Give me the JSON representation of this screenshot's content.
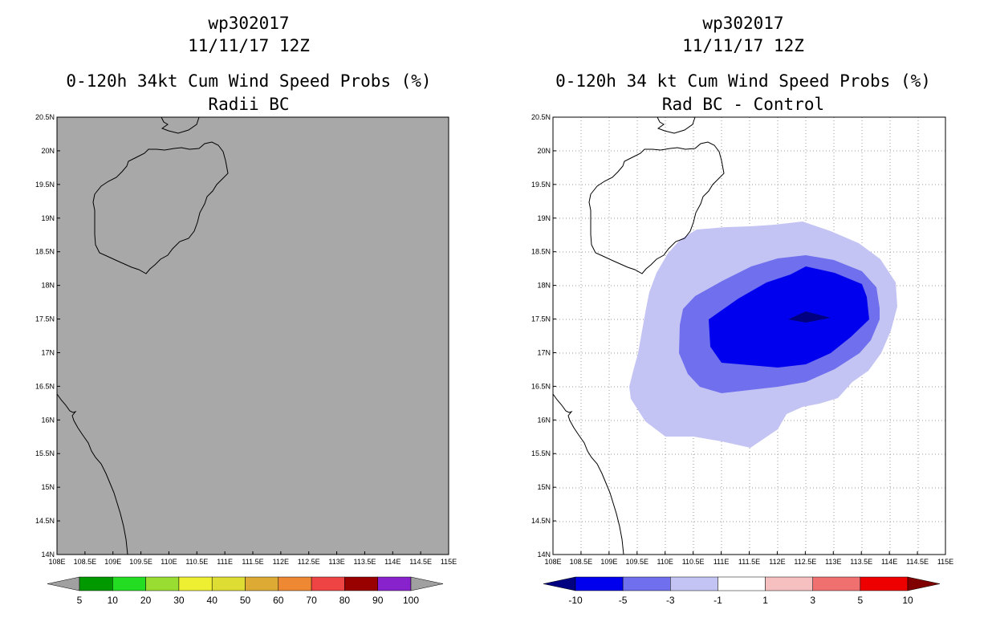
{
  "chart_data": [
    {
      "type": "heatmap",
      "panel": "left",
      "title_lines": [
        "wp302017",
        "11/11/17 12Z",
        "0-120h 34kt Cum Wind Speed Probs (%)",
        "Radii BC"
      ],
      "x_ticks": [
        "108E",
        "108.5E",
        "109E",
        "109.5E",
        "110E",
        "110.5E",
        "111E",
        "111.5E",
        "112E",
        "112.5E",
        "113E",
        "113.5E",
        "114E",
        "114.5E",
        "115E"
      ],
      "y_ticks": [
        "14N",
        "14.5N",
        "15N",
        "15.5N",
        "16N",
        "16.5N",
        "17N",
        "17.5N",
        "18N",
        "18.5N",
        "19N",
        "19.5N",
        "20N",
        "20.5N"
      ],
      "xlim": [
        108,
        115
      ],
      "ylim": [
        14,
        20.5
      ],
      "field_value": "undefined (gray)",
      "colorbar": {
        "labels": [
          "5",
          "10",
          "20",
          "30",
          "40",
          "50",
          "60",
          "70",
          "80",
          "90",
          "100"
        ],
        "colors": [
          "#a0a0a0",
          "#009900",
          "#22dd22",
          "#99dd33",
          "#eeee33",
          "#dddd33",
          "#ddaa33",
          "#ee8833",
          "#ee4444",
          "#990000",
          "#8822cc",
          "#a0a0a0"
        ]
      }
    },
    {
      "type": "heatmap",
      "panel": "right",
      "title_lines": [
        "wp302017",
        "11/11/17 12Z",
        "0-120h 34 kt Cum Wind Speed Probs (%)",
        "Rad BC - Control"
      ],
      "x_ticks": [
        "108E",
        "108.5E",
        "109E",
        "109.5E",
        "110E",
        "110.5E",
        "111E",
        "111.5E",
        "112E",
        "112.5E",
        "113E",
        "113.5E",
        "114E",
        "114.5E",
        "115E"
      ],
      "y_ticks": [
        "14N",
        "14.5N",
        "15N",
        "15.5N",
        "16N",
        "16.5N",
        "17N",
        "17.5N",
        "18N",
        "18.5N",
        "19N",
        "19.5N",
        "20N",
        "20.5N"
      ],
      "xlim": [
        108,
        115
      ],
      "ylim": [
        14,
        20.5
      ],
      "contour_levels": [
        -10,
        -5,
        -3,
        -1
      ],
      "colorbar": {
        "labels": [
          "-10",
          "-5",
          "-3",
          "-1",
          "1",
          "3",
          "5",
          "10"
        ],
        "colors": [
          "#000080",
          "#0000ee",
          "#7070ee",
          "#c4c4f4",
          "#ffffff",
          "#f6c0c0",
          "#f07070",
          "#ee0000",
          "#800000"
        ]
      }
    }
  ]
}
